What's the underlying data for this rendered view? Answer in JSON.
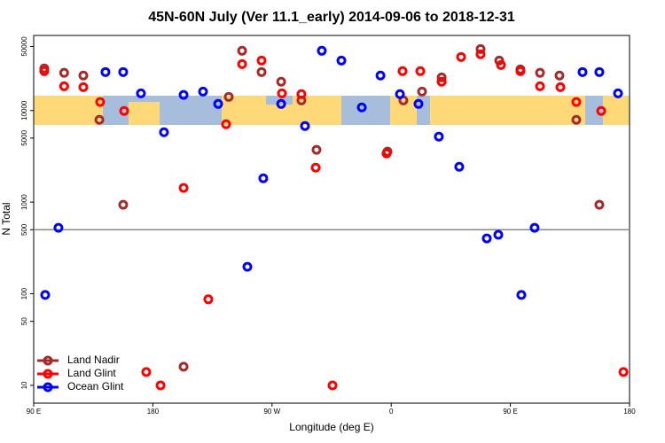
{
  "chart_data": {
    "type": "scatter",
    "title": "45N-60N July (Ver 11.1_early)   2014-09-06 to 2018-12-31",
    "x_label": "Longitude (deg E)",
    "y_label": "N Total",
    "xlim": [
      90,
      540
    ],
    "ylim": [
      6.4,
      66000
    ],
    "log_y": true,
    "xticks": [
      {
        "value": 90,
        "label": "90 E"
      },
      {
        "value": 180,
        "label": "180"
      },
      {
        "value": 270,
        "label": "90 W"
      },
      {
        "value": 360,
        "label": "0"
      },
      {
        "value": 450,
        "label": "90 E"
      },
      {
        "value": 540,
        "label": "180"
      }
    ],
    "yticks": [
      10,
      50,
      100,
      500,
      1000,
      5000,
      10000,
      50000
    ],
    "reference_line": 500,
    "legend": "lower left",
    "series": [
      {
        "name": "Land Nadir",
        "color": "#a52a2a",
        "x": [
          98,
          113,
          127.5,
          139.6,
          157.6,
          203.2,
          237.3,
          247.4,
          262.1,
          276.9,
          292.2,
          303.6,
          357.2,
          369.2,
          383.3,
          398.1,
          427.5,
          441.6,
          457.6,
          472.4,
          487.1,
          499.8,
          517.2
        ],
        "values": [
          28800,
          25800,
          24100,
          7920,
          935,
          16,
          14100,
          44900,
          26300,
          20600,
          12900,
          3720,
          3560,
          12900,
          16100,
          23000,
          46900,
          35100,
          28100,
          25800,
          24100,
          7920,
          935
        ]
      },
      {
        "name": "Land Glint",
        "color": "#ff0000",
        "x": [
          98,
          113,
          127.5,
          140.2,
          158.3,
          175,
          185.8,
          203.2,
          221.9,
          235.3,
          247.4,
          262.1,
          277.5,
          292.2,
          303,
          315.7,
          356.5,
          368.6,
          382,
          398.1,
          412.8,
          427.5,
          442.9,
          457.6,
          472.4,
          487.8,
          499.8,
          518.6,
          535.4
        ],
        "values": [
          26900,
          18400,
          18000,
          12400,
          9900,
          14,
          10,
          1430,
          87,
          7080,
          32100,
          35100,
          15400,
          15100,
          2380,
          10,
          3400,
          26900,
          26900,
          20600,
          38400,
          41100,
          31400,
          26900,
          18400,
          18000,
          12400,
          9900,
          14
        ]
      },
      {
        "name": "Ocean Glint",
        "color": "#0000ff",
        "x": [
          98.7,
          108.7,
          144.2,
          157.6,
          171,
          188.4,
          203.2,
          217.9,
          229.3,
          251.4,
          263.4,
          276.9,
          294.9,
          307.6,
          322.4,
          337.8,
          351.9,
          366.6,
          380.6,
          396,
          411.4,
          432.2,
          440.9,
          458.3,
          468.3,
          504.5,
          517.2,
          531.3
        ],
        "values": [
          97,
          525,
          26300,
          26300,
          15400,
          5800,
          14800,
          16100,
          11800,
          197,
          1820,
          11800,
          6780,
          44900,
          35100,
          10800,
          24100,
          15100,
          11800,
          5190,
          2430,
          402,
          440,
          97,
          525,
          26300,
          26300,
          15400
        ]
      }
    ]
  }
}
